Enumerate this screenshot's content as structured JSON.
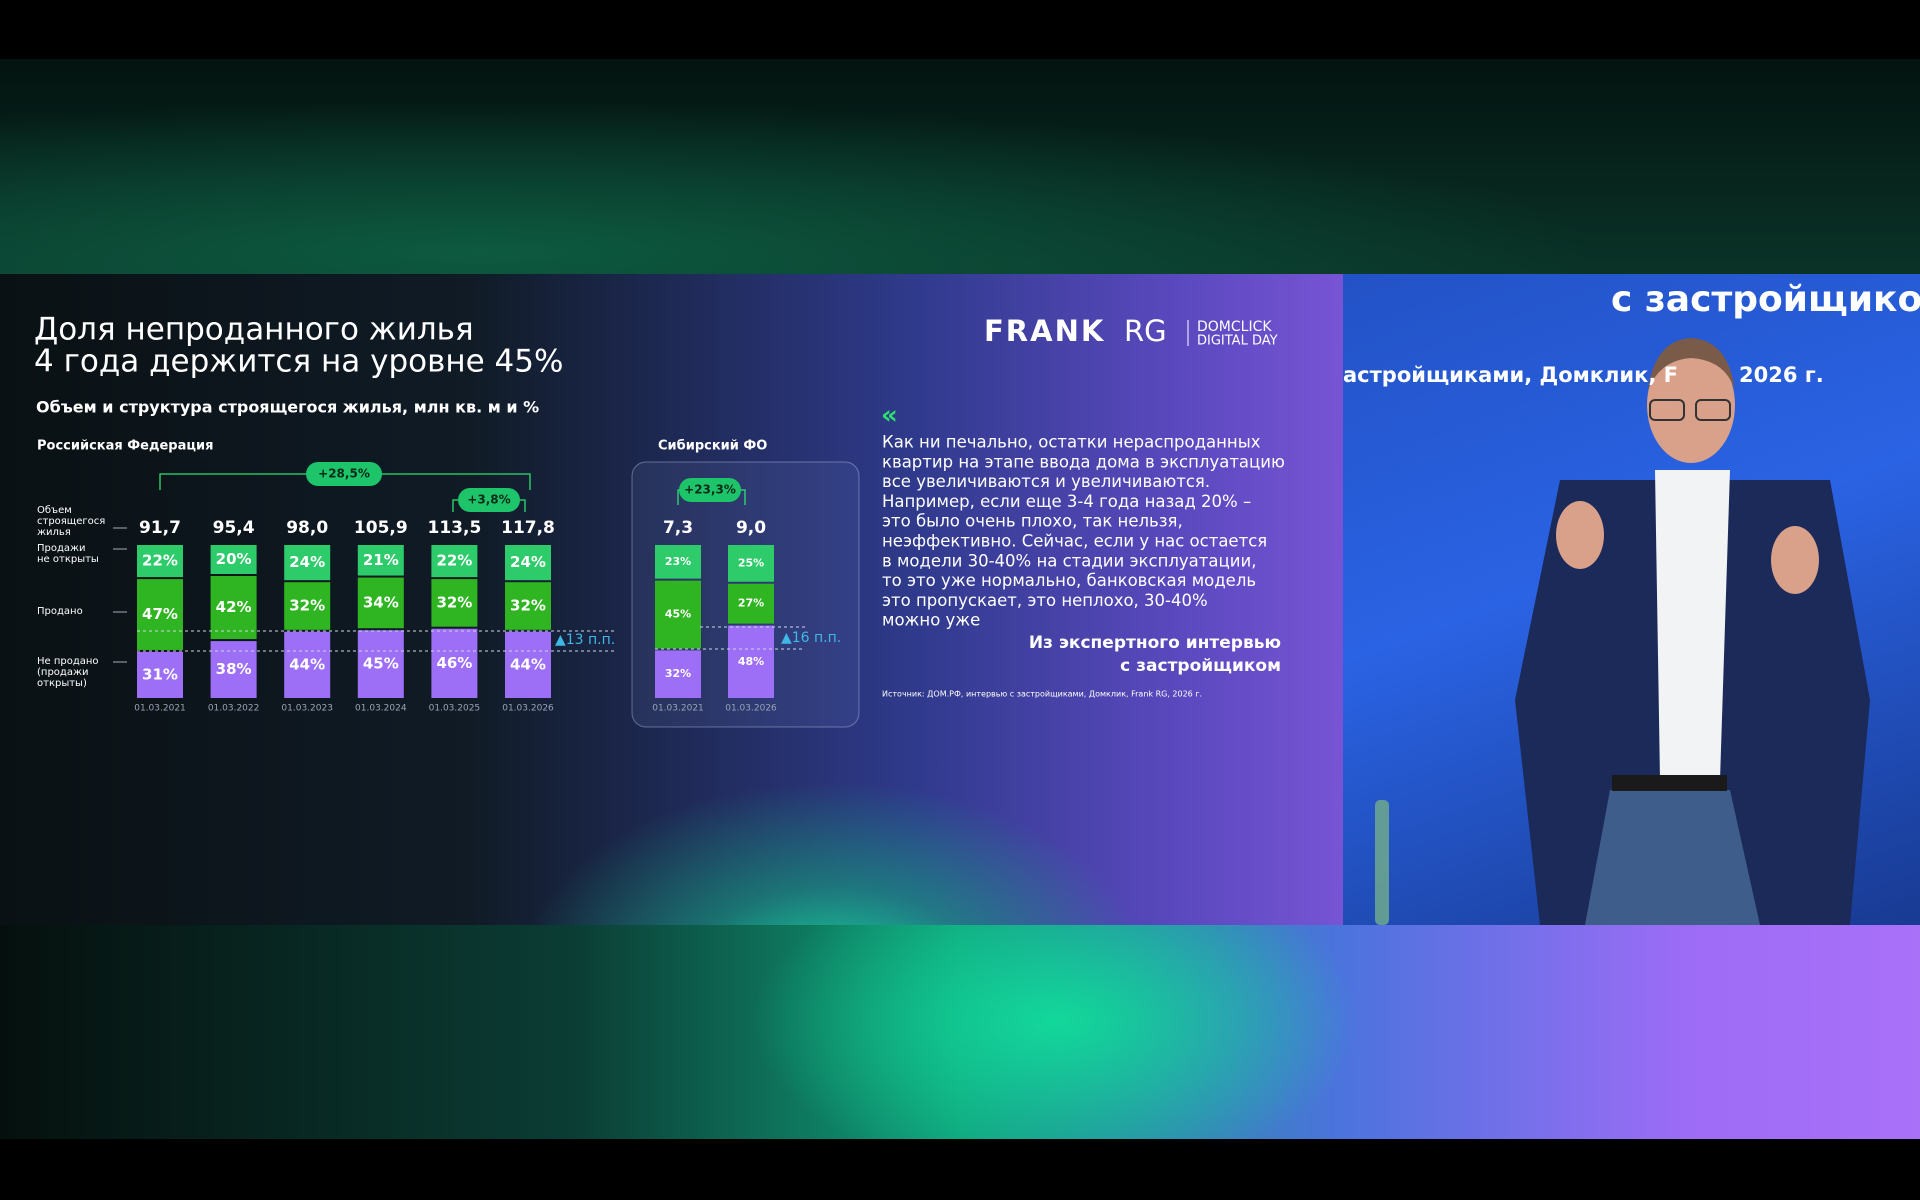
{
  "slide": {
    "title": [
      "Доля непроданного жилья",
      "4 года держится на уровне 45%"
    ],
    "subtitle": "Объем и структура строящегося жилья, млн кв. м и %",
    "logo": {
      "brand": "FRANK",
      "brand_suffix": "RG",
      "partner": "DOMCLICK",
      "event": "DIGITAL DAY"
    },
    "quote": {
      "mark": "«",
      "lines": [
        "Как ни печально, остатки нераспроданных",
        "квартир на этапе ввода дома в эксплуатацию",
        "все увеличиваются и увеличиваются.",
        "Например, если еще 3-4 года назад 20% –",
        "это было очень плохо, так нельзя,",
        "неэффективно. Сейчас, если у нас остается",
        "в модели 30-40% на стадии эксплуатации,",
        "то это уже нормально, банковская модель",
        "это пропускает, это неплохо, 30-40%",
        "можно уже"
      ],
      "attribution": [
        "Из экспертного интервью",
        "с застройщиком"
      ]
    },
    "source": "Источник: ДОМ.РФ, интервью с застройщиками, Домклик, Frank RG, 2026 г."
  },
  "video": {
    "caption_large": "с застройщико",
    "caption_small": [
      "астройщиками, Домклик, F",
      "2026 г."
    ]
  },
  "chart_data": [
    {
      "type": "bar",
      "stacked": true,
      "title": "Российская Федерация",
      "categories": [
        "01.03.2021",
        "01.03.2022",
        "01.03.2023",
        "01.03.2024",
        "01.03.2025",
        "01.03.2026"
      ],
      "ylim": [
        0,
        100
      ],
      "series": [
        {
          "name": "Не продано (продажи открыты)",
          "color": "#9d6ff7",
          "values": [
            31,
            38,
            44,
            45,
            46,
            44
          ],
          "value_labels": [
            "31%",
            "38%",
            "44%",
            "45%",
            "46%",
            "44%"
          ]
        },
        {
          "name": "Продано",
          "color": "#2fb521",
          "values": [
            47,
            42,
            32,
            34,
            32,
            32
          ],
          "value_labels": [
            "47%",
            "42%",
            "32%",
            "34%",
            "32%",
            "32%"
          ]
        },
        {
          "name": "Продажи не открыты",
          "color": "#2ecb6a",
          "values": [
            22,
            20,
            24,
            21,
            22,
            24
          ],
          "value_labels": [
            "22%",
            "20%",
            "24%",
            "21%",
            "22%",
            "24%"
          ]
        }
      ],
      "totals": {
        "name": "Объем строящегося жилья",
        "values": [
          91.7,
          95.4,
          98.0,
          105.9,
          113.5,
          117.8
        ],
        "value_labels": [
          "91,7",
          "95,4",
          "98,0",
          "105,9",
          "113,5",
          "117,8"
        ]
      },
      "annotations": [
        "+28,5%",
        "+3,8%",
        "▲13 п.п."
      ]
    },
    {
      "type": "bar",
      "stacked": true,
      "title": "Сибирский ФО",
      "categories": [
        "01.03.2021",
        "01.03.2026"
      ],
      "ylim": [
        0,
        100
      ],
      "series": [
        {
          "color": "#9d6ff7",
          "values": [
            32,
            48
          ],
          "value_labels": [
            "32%",
            "48%"
          ]
        },
        {
          "color": "#2fb521",
          "values": [
            45,
            27
          ],
          "value_labels": [
            "45%",
            "27%"
          ]
        },
        {
          "color": "#2ecb6a",
          "values": [
            23,
            25
          ],
          "value_labels": [
            "23%",
            "25%"
          ]
        }
      ],
      "totals": {
        "values": [
          7.3,
          9.0
        ],
        "value_labels": [
          "7,3",
          "9,0"
        ]
      },
      "annotations": [
        "+23,3%",
        "▲16 п.п."
      ]
    }
  ]
}
